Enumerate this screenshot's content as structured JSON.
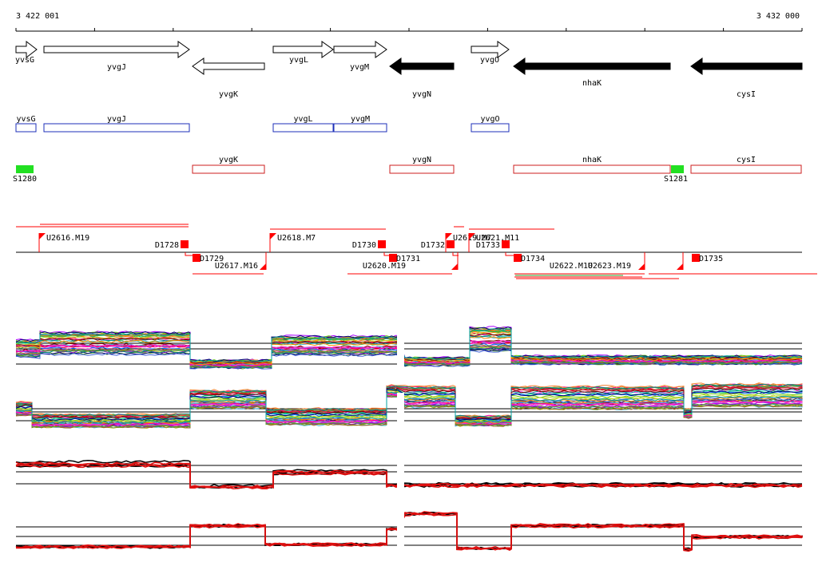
{
  "ruler": {
    "start": "3 422 001",
    "end": "3 432 000"
  },
  "genes": [
    {
      "label": "yvsG",
      "strand": "+",
      "filled": false,
      "label_below": true
    },
    {
      "label": "yvgJ",
      "strand": "+",
      "filled": false,
      "label_below": false
    },
    {
      "label": "yvgK",
      "strand": "-",
      "filled": false,
      "label_below": false
    },
    {
      "label": "yvgL",
      "strand": "+",
      "filled": false,
      "label_below": false
    },
    {
      "label": "yvgM",
      "strand": "+",
      "filled": false,
      "label_below": false
    },
    {
      "label": "yvgN",
      "strand": "-",
      "filled": true,
      "label_below": false
    },
    {
      "label": "yvgO",
      "strand": "+",
      "filled": false,
      "label_below": false
    },
    {
      "label": "nhaK",
      "strand": "-",
      "filled": true,
      "label_below": false
    },
    {
      "label": "cysI",
      "strand": "-",
      "filled": true,
      "label_below": false
    }
  ],
  "strand_plus": [
    {
      "label": "yvsG"
    },
    {
      "label": "yvgJ"
    },
    {
      "label": "yvgL"
    },
    {
      "label": "yvgM"
    },
    {
      "label": "yvgO"
    }
  ],
  "strand_minus": [
    {
      "label": "yvgK"
    },
    {
      "label": "yvgN"
    },
    {
      "label": "nhaK"
    },
    {
      "label": "cysI"
    }
  ],
  "sites": [
    {
      "label": "S1280"
    },
    {
      "label": "S1281"
    }
  ],
  "markers_down": [
    {
      "label": "D1728"
    },
    {
      "label": "D1730"
    },
    {
      "label": "D1732"
    },
    {
      "label": "D1733"
    }
  ],
  "markers_up": [
    {
      "label": "D1729"
    },
    {
      "label": "D1731"
    },
    {
      "label": "D1734"
    },
    {
      "label": "D1735"
    }
  ],
  "upstream_plus": [
    {
      "label": "U2616.M19"
    },
    {
      "label": "U2618.M7"
    },
    {
      "label": "U2619.M7"
    },
    {
      "label": "U2621.M11"
    }
  ],
  "upstream_minus": [
    {
      "label": "U2617.M16"
    },
    {
      "label": "U2620.M19"
    },
    {
      "label": "U2622.M10"
    },
    {
      "label": "U2623.M19"
    }
  ],
  "tracks": [
    {
      "name": "multi-condition-forward"
    },
    {
      "name": "multi-condition-reverse"
    },
    {
      "name": "summary-forward"
    },
    {
      "name": "summary-reverse"
    }
  ],
  "colors": {
    "plus_strand": "#1c2fb8",
    "minus_strand": "#cc1f1f",
    "site": "#22e022",
    "marker": "#ff0000",
    "ink": "#000000",
    "summary_red": "#e01010"
  }
}
